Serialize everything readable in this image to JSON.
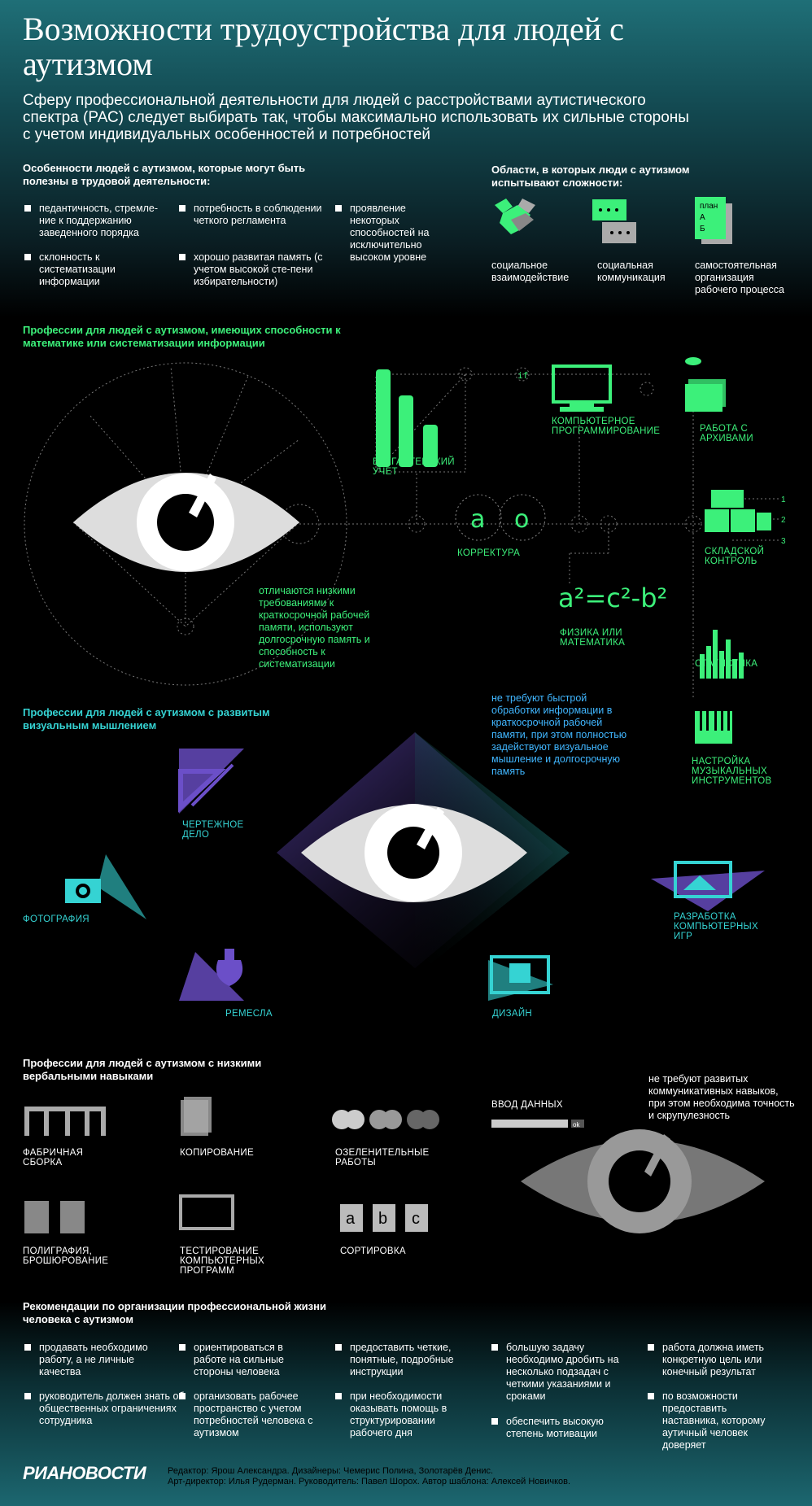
{
  "title": "Возможности трудоустройства для людей с аутизмом",
  "intro": "Сферу профессиональной деятельности для людей с расстройствами аутистического спектра (РАС) следует выбирать так, чтобы максимально использовать их сильные стороны с учетом индивидуальных особенностей и потребностей",
  "features": {
    "heading": "Особенности людей с аутизмом, которые могут быть полезны в трудовой деятельности:",
    "items": [
      "педантичность, стремле-ние к поддержанию заведенного порядка",
      "склонность к систематизации информации",
      "потребность в соблюдении четкого регламента",
      "хорошо развитая память (с учетом высокой сте-пени избирательности)",
      "проявление некоторых способностей на исключительно высоком уровне"
    ]
  },
  "difficulties": {
    "heading": "Области, в которых люди с аутизмом испытывают сложности:",
    "items": [
      "социальное взаимодействие",
      "социальная коммуникация",
      "самостоятельная организация рабочего процесса"
    ],
    "plan_text": "план",
    "plan_a": "А",
    "plan_b": "Б"
  },
  "math": {
    "heading": "Профессии для людей с аутизмом, имеющих способности к математике или систематизации информации",
    "note": "отличаются низкими требованиями к краткосрочной рабочей памяти, используют долгосрочную память и способность к систематизации",
    "professions": {
      "accounting": "БУХГАЛТЕРСКИЙ УЧЕТ",
      "programming": "КОМПЬЮТЕРНОЕ ПРОГРАММИРОВАНИЕ",
      "archives": "РАБОТА С АРХИВАМИ",
      "proofreading": "КОРРЕКТУРА",
      "warehouse": "СКЛАДСКОЙ КОНТРОЛЬ",
      "physics": "ФИЗИКА ИЛИ МАТЕМАТИКА",
      "statistics": "СТАТИСТИКА",
      "music": "НАСТРОЙКА МУЗЫКАЛЬНЫХ ИНСТРУМЕНТОВ"
    },
    "if_text": "if",
    "letters": [
      "а",
      "о"
    ],
    "formula": "a²=c²-b²",
    "warehouse_numbers": [
      "1",
      "2",
      "3"
    ]
  },
  "visual": {
    "heading": "Профессии для людей с аутизмом с развитым визуальным мышлением",
    "note": "не требуют быстрой обработки информации в краткосрочной рабочей памяти, при этом полностью задействуют визуальное мышление и долгосрочную память",
    "professions": {
      "drafting": "ЧЕРТЕЖНОЕ ДЕЛО",
      "photo": "ФОТОГРАФИЯ",
      "crafts": "РЕМЕСЛА",
      "design": "ДИЗАЙН",
      "games": "РАЗРАБОТКА КОМПЬЮТЕРНЫХ ИГР"
    }
  },
  "verbal": {
    "heading": "Профессии для людей с аутизмом с низкими вербальными навыками",
    "note": "не требуют развитых коммуникативных навыков, при этом необходима точность и скрупулезность",
    "professions": {
      "factory": "ФАБРИЧНАЯ СБОРКА",
      "copying": "КОПИРОВАНИЕ",
      "gardening": "ОЗЕЛЕНИТЕЛЬНЫЕ РАБОТЫ",
      "data_entry": "ВВОД ДАННЫХ",
      "printing": "ПОЛИГРАФИЯ, БРОШЮРОВАНИЕ",
      "testing": "ТЕСТИРОВАНИЕ КОМПЬЮТЕРНЫХ ПРОГРАММ",
      "sorting": "СОРТИРОВКА"
    },
    "ok_text": "ok",
    "sort_letters": [
      "a",
      "b",
      "c"
    ]
  },
  "recommendations": {
    "heading": "Рекомендации по организации профессиональной жизни человека с аутизмом",
    "items": [
      "продавать необходимо работу, а не личные качества",
      "руководитель должен знать об общественных ограничениях сотрудника",
      "ориентироваться в работе на сильные стороны человека",
      "организовать рабочее пространство с учетом потребностей человека с аутизмом",
      "предоставить четкие, понятные, подробные инструкции",
      "при необходимости оказывать помощь в структурировании рабочего дня",
      "большую задачу необходимо дробить на несколько подзадач с четкими указаниями и сроками",
      "обеспечить высокую степень мотивации",
      "работа должна иметь конкретную цель или конечный результат",
      "по возможности предоставить наставника, которому аутичный человек доверяет"
    ]
  },
  "footer": {
    "logo": "РИАНОВОСТИ",
    "line1": "Редактор: Ярош Александра. Дизайнеры: Чемерис Полина, Золотарёв Денис.",
    "line2": "Арт-директор: Илья Рудерман. Руководитель: Павел Шорох. Автор шаблона: Алексей Новичков."
  },
  "colors": {
    "green": "#3cf07a",
    "teal": "#35d3d3",
    "blue": "#40b6ff",
    "purple": "#6b4fc8"
  }
}
